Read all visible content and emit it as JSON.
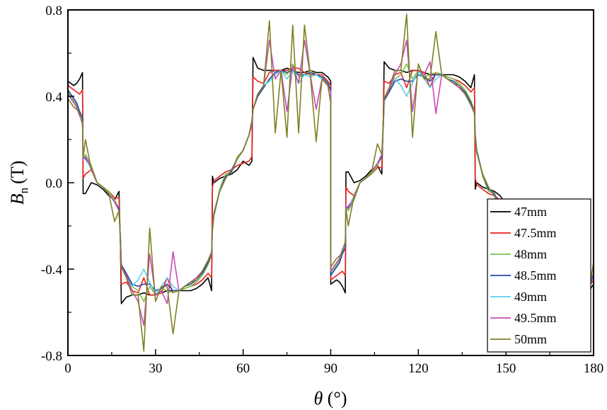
{
  "chart_data": {
    "type": "line",
    "xlabel": "θ (°)",
    "xlabel_symbol": "θ",
    "xlabel_unit": "(°)",
    "ylabel": "Bn (T)",
    "ylabel_symbol": "B",
    "ylabel_sub": "n",
    "ylabel_unit": "(T)",
    "xlim": [
      0,
      180
    ],
    "ylim": [
      -0.8,
      0.8
    ],
    "x_ticks": [
      0,
      30,
      60,
      90,
      120,
      150,
      180
    ],
    "x_tick_labels": [
      "0",
      "30",
      "60",
      "90",
      "120",
      "150",
      "180"
    ],
    "y_ticks": [
      0.8,
      0.4,
      0.0,
      -0.4,
      -0.8
    ],
    "y_tick_labels": [
      "0.8",
      "0.4",
      "0.0",
      "-0.4",
      "-0.8"
    ],
    "grid": false,
    "legend_position": "bottom-right",
    "period": 90,
    "series": [
      {
        "name": "47mm",
        "color": "#000000",
        "x": [
          0,
          2,
          3,
          4,
          5,
          5.2,
          6,
          8,
          10,
          12,
          14,
          16,
          17.5,
          18,
          18.3,
          20,
          22,
          24,
          26,
          28,
          30,
          32,
          34,
          36,
          38,
          40,
          42,
          44,
          46,
          48,
          49.2,
          49.5,
          50,
          52,
          54,
          56,
          58,
          60,
          62,
          63,
          63.4,
          65,
          67,
          69,
          71,
          73,
          75,
          77,
          79,
          81,
          83,
          85,
          87,
          89,
          90
        ],
        "y": [
          0.47,
          0.45,
          0.46,
          0.48,
          0.51,
          -0.05,
          -0.05,
          0.0,
          -0.01,
          -0.03,
          -0.06,
          -0.08,
          -0.04,
          -0.3,
          -0.56,
          -0.53,
          -0.52,
          -0.52,
          -0.51,
          -0.52,
          -0.52,
          -0.51,
          -0.5,
          -0.5,
          -0.5,
          -0.5,
          -0.5,
          -0.49,
          -0.47,
          -0.44,
          -0.5,
          0.03,
          0.0,
          0.02,
          0.03,
          0.04,
          0.06,
          0.1,
          0.08,
          0.1,
          0.58,
          0.53,
          0.52,
          0.52,
          0.52,
          0.52,
          0.53,
          0.52,
          0.51,
          0.51,
          0.52,
          0.51,
          0.51,
          0.49,
          0.47
        ]
      },
      {
        "name": "47.5mm",
        "color": "#e8201e",
        "x": [
          0,
          2,
          3,
          4,
          5,
          5.2,
          6,
          8,
          10,
          12,
          14,
          16,
          17.5,
          18,
          18.3,
          20,
          22,
          24,
          26,
          28,
          30,
          32,
          34,
          36,
          38,
          40,
          42,
          44,
          46,
          48,
          49.2,
          49.5,
          50,
          52,
          54,
          56,
          58,
          60,
          62,
          63,
          63.4,
          65,
          67,
          69,
          71,
          73,
          75,
          77,
          79,
          81,
          83,
          85,
          87,
          89,
          90
        ],
        "y": [
          0.45,
          0.43,
          0.42,
          0.41,
          0.43,
          0.02,
          0.04,
          0.06,
          0.0,
          -0.02,
          -0.04,
          -0.07,
          -0.07,
          -0.29,
          -0.47,
          -0.46,
          -0.5,
          -0.51,
          -0.44,
          -0.52,
          -0.52,
          -0.51,
          -0.44,
          -0.51,
          -0.5,
          -0.49,
          -0.48,
          -0.47,
          -0.45,
          -0.42,
          -0.44,
          -0.02,
          0.01,
          0.03,
          0.05,
          0.06,
          0.08,
          0.09,
          0.1,
          0.12,
          0.49,
          0.47,
          0.46,
          0.51,
          0.52,
          0.52,
          0.52,
          0.53,
          0.53,
          0.51,
          0.5,
          0.5,
          0.5,
          0.47,
          0.45
        ]
      },
      {
        "name": "48mm",
        "color": "#7dc245",
        "x": [
          0,
          2,
          3,
          4,
          5,
          5.2,
          6,
          8,
          10,
          12,
          14,
          16,
          17.5,
          18,
          18.3,
          20,
          22,
          24,
          26,
          28,
          30,
          32,
          34,
          36,
          38,
          40,
          42,
          44,
          46,
          48,
          49.2,
          49.5,
          50,
          52,
          54,
          56,
          58,
          60,
          62,
          63,
          63.4,
          65,
          67,
          69,
          71,
          73,
          75,
          77,
          79,
          81,
          83,
          85,
          87,
          89,
          90
        ],
        "y": [
          0.42,
          0.38,
          0.36,
          0.33,
          0.3,
          0.12,
          0.13,
          0.08,
          0.0,
          -0.02,
          -0.04,
          -0.08,
          -0.12,
          -0.26,
          -0.38,
          -0.42,
          -0.48,
          -0.5,
          -0.55,
          -0.48,
          -0.52,
          -0.49,
          -0.5,
          -0.51,
          -0.5,
          -0.49,
          -0.48,
          -0.46,
          -0.43,
          -0.38,
          -0.33,
          -0.22,
          -0.15,
          -0.03,
          0.04,
          0.05,
          0.12,
          0.15,
          0.22,
          0.28,
          0.34,
          0.4,
          0.44,
          0.48,
          0.51,
          0.52,
          0.5,
          0.55,
          0.49,
          0.5,
          0.52,
          0.5,
          0.49,
          0.46,
          0.43
        ]
      },
      {
        "name": "48.5mm",
        "color": "#2646b0",
        "x": [
          0,
          2,
          3,
          4,
          5,
          5.2,
          6,
          8,
          10,
          12,
          14,
          16,
          17.5,
          18,
          18.3,
          20,
          22,
          24,
          26,
          28,
          30,
          32,
          34,
          36,
          38,
          40,
          42,
          44,
          46,
          48,
          49.2,
          49.5,
          50,
          52,
          54,
          56,
          58,
          60,
          62,
          63,
          63.4,
          65,
          67,
          69,
          71,
          73,
          75,
          77,
          79,
          81,
          83,
          85,
          87,
          89,
          90
        ],
        "y": [
          0.43,
          0.39,
          0.37,
          0.33,
          0.3,
          0.12,
          0.11,
          0.07,
          0.0,
          -0.02,
          -0.05,
          -0.09,
          -0.12,
          -0.26,
          -0.38,
          -0.42,
          -0.47,
          -0.48,
          -0.47,
          -0.47,
          -0.5,
          -0.49,
          -0.47,
          -0.5,
          -0.5,
          -0.48,
          -0.47,
          -0.45,
          -0.42,
          -0.37,
          -0.33,
          -0.22,
          -0.15,
          -0.04,
          0.03,
          0.05,
          0.11,
          0.15,
          0.22,
          0.27,
          0.34,
          0.4,
          0.44,
          0.48,
          0.51,
          0.52,
          0.51,
          0.52,
          0.5,
          0.5,
          0.51,
          0.5,
          0.49,
          0.46,
          0.43
        ]
      },
      {
        "name": "49mm",
        "color": "#5ad1e6",
        "x": [
          0,
          2,
          3,
          4,
          5,
          5.2,
          6,
          8,
          10,
          12,
          14,
          16,
          17.5,
          18,
          18.3,
          20,
          22,
          24,
          26,
          28,
          30,
          32,
          34,
          36,
          38,
          40,
          42,
          44,
          46,
          48,
          49.2,
          49.5,
          50,
          52,
          54,
          56,
          58,
          60,
          62,
          63,
          63.4,
          65,
          67,
          69,
          71,
          73,
          75,
          77,
          79,
          81,
          83,
          85,
          87,
          89,
          90
        ],
        "y": [
          0.41,
          0.37,
          0.35,
          0.31,
          0.28,
          0.12,
          0.12,
          0.06,
          0.0,
          -0.02,
          -0.05,
          -0.09,
          -0.13,
          -0.27,
          -0.39,
          -0.44,
          -0.48,
          -0.45,
          -0.4,
          -0.46,
          -0.52,
          -0.48,
          -0.44,
          -0.48,
          -0.5,
          -0.48,
          -0.46,
          -0.44,
          -0.41,
          -0.36,
          -0.32,
          -0.21,
          -0.14,
          -0.04,
          0.02,
          0.06,
          0.11,
          0.15,
          0.22,
          0.28,
          0.34,
          0.41,
          0.45,
          0.47,
          0.5,
          0.52,
          0.48,
          0.52,
          0.46,
          0.5,
          0.49,
          0.5,
          0.48,
          0.45,
          0.42
        ]
      },
      {
        "name": "49.5mm",
        "color": "#c94bb8",
        "x": [
          0,
          2,
          3,
          4,
          5,
          5.2,
          6,
          8,
          10,
          12,
          14,
          16,
          17.5,
          18,
          18.3,
          20,
          22,
          24,
          26,
          28,
          30,
          32,
          34,
          36,
          38,
          40,
          42,
          44,
          46,
          48,
          49.2,
          49.5,
          50,
          52,
          54,
          56,
          58,
          60,
          62,
          63,
          63.4,
          65,
          67,
          69,
          71,
          73,
          75,
          77,
          79,
          81,
          83,
          85,
          87,
          89,
          90
        ],
        "y": [
          0.41,
          0.37,
          0.35,
          0.31,
          0.28,
          0.11,
          0.12,
          0.07,
          0.0,
          -0.02,
          -0.05,
          -0.09,
          -0.13,
          -0.27,
          -0.39,
          -0.43,
          -0.5,
          -0.55,
          -0.66,
          -0.33,
          -0.52,
          -0.5,
          -0.56,
          -0.32,
          -0.5,
          -0.48,
          -0.46,
          -0.44,
          -0.41,
          -0.36,
          -0.32,
          -0.21,
          -0.14,
          -0.04,
          0.02,
          0.06,
          0.11,
          0.15,
          0.22,
          0.28,
          0.34,
          0.41,
          0.45,
          0.66,
          0.48,
          0.52,
          0.33,
          0.54,
          0.46,
          0.66,
          0.5,
          0.34,
          0.48,
          0.45,
          0.42
        ]
      },
      {
        "name": "50mm",
        "color": "#7f7f22",
        "x": [
          0,
          2,
          3,
          4,
          5,
          5.2,
          6,
          8,
          10,
          12,
          14,
          16,
          17.5,
          18,
          18.3,
          20,
          22,
          24,
          26,
          28,
          30,
          32,
          34,
          36,
          38,
          40,
          42,
          44,
          46,
          48,
          49.2,
          49.5,
          50,
          52,
          54,
          56,
          58,
          60,
          62,
          63,
          63.4,
          65,
          67,
          69,
          71,
          73,
          75,
          77,
          79,
          81,
          83,
          85,
          87,
          89,
          90
        ],
        "y": [
          0.39,
          0.35,
          0.34,
          0.32,
          0.27,
          0.12,
          0.2,
          0.06,
          0.0,
          -0.02,
          -0.05,
          -0.18,
          -0.13,
          -0.27,
          -0.39,
          -0.44,
          -0.52,
          -0.52,
          -0.78,
          -0.21,
          -0.55,
          -0.48,
          -0.48,
          -0.7,
          -0.5,
          -0.48,
          -0.46,
          -0.45,
          -0.41,
          -0.36,
          -0.33,
          -0.21,
          -0.14,
          -0.04,
          0.02,
          0.06,
          0.11,
          0.15,
          0.22,
          0.29,
          0.34,
          0.41,
          0.45,
          0.75,
          0.23,
          0.52,
          0.21,
          0.73,
          0.23,
          0.73,
          0.5,
          0.19,
          0.48,
          0.45,
          0.37
        ]
      }
    ]
  }
}
